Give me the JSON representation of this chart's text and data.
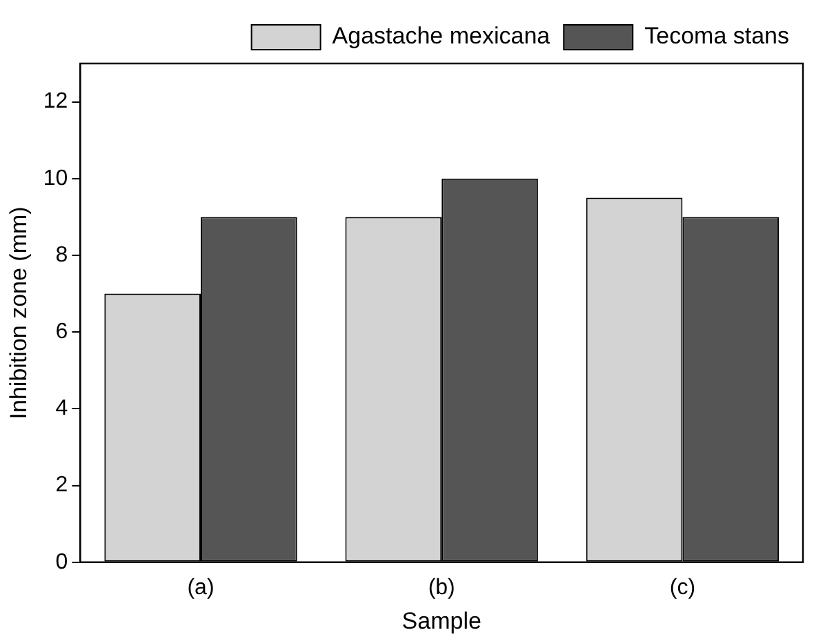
{
  "chart_data": {
    "type": "bar",
    "xlabel": "Sample",
    "ylabel": "Inhibition zone (mm)",
    "categories": [
      "(a)",
      "(b)",
      "(c)"
    ],
    "series": [
      {
        "name": "Agastache mexicana",
        "color": "#d3d3d3",
        "values": [
          7,
          9,
          9.5
        ]
      },
      {
        "name": "Tecoma stans",
        "color": "#555555",
        "values": [
          9,
          10,
          9
        ]
      }
    ],
    "ylim": [
      0,
      13
    ],
    "yticks": [
      0,
      2,
      4,
      6,
      8,
      10,
      12
    ],
    "grid": false,
    "legend": "top right"
  }
}
